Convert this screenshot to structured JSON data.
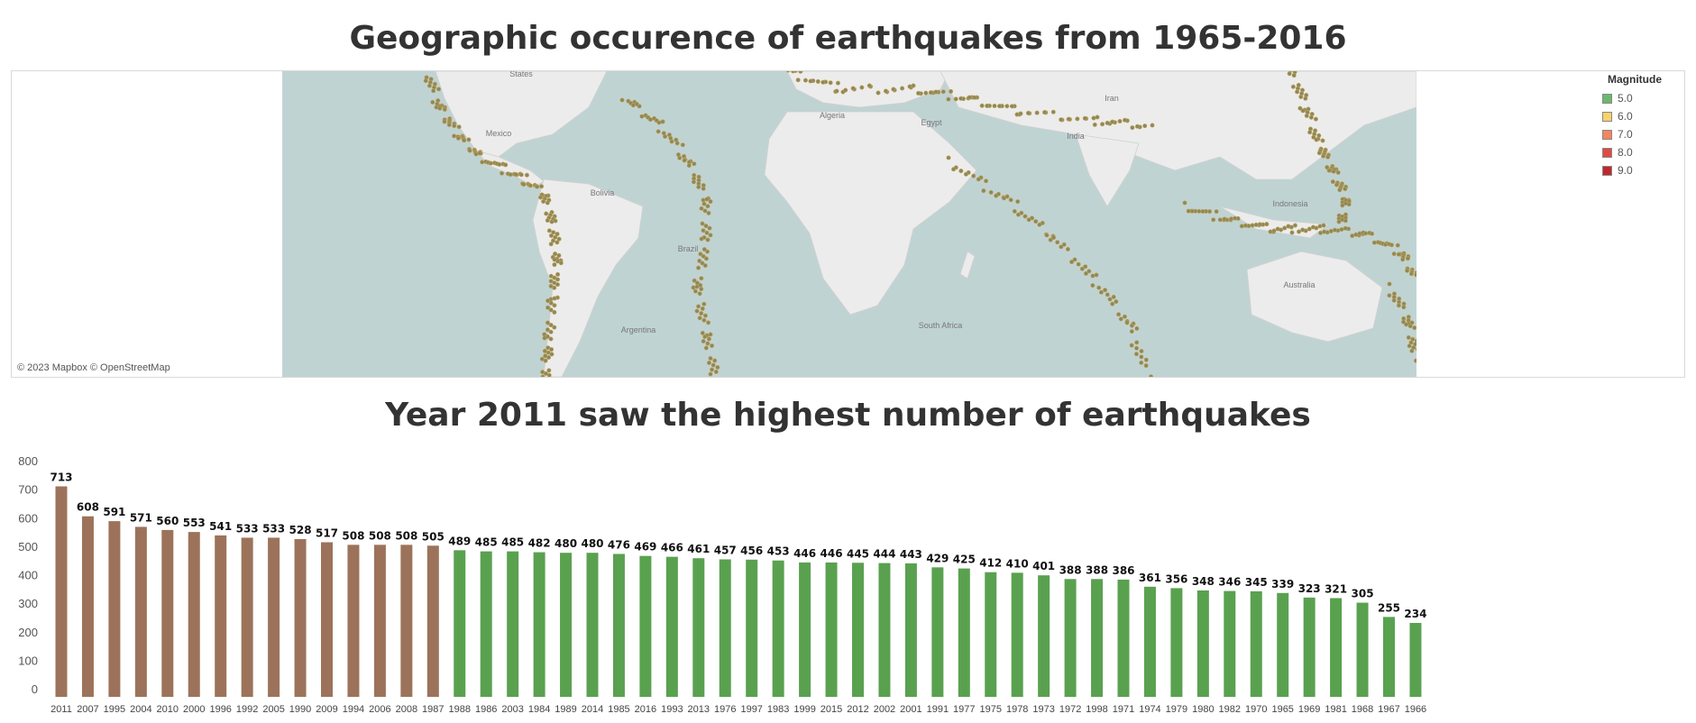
{
  "map": {
    "title": "Geographic occurence of earthquakes from 1965-2016",
    "credit": "© 2023 Mapbox © OpenStreetMap",
    "legend": {
      "title": "Magnitude",
      "items": [
        {
          "label": "5.0",
          "color": "#6cb96c"
        },
        {
          "label": "6.0",
          "color": "#f7d26b"
        },
        {
          "label": "7.0",
          "color": "#f5845f"
        },
        {
          "label": "8.0",
          "color": "#e04b3f"
        },
        {
          "label": "9.0",
          "color": "#c0282d"
        }
      ]
    },
    "place_labels": [
      "States",
      "Mexico",
      "Algeria",
      "Egypt",
      "Iran",
      "India",
      "Brazil",
      "Indonesia",
      "Australia",
      "South Africa",
      "Argentina",
      "Bolivia"
    ],
    "colors": {
      "ocean": "#c0d3d3",
      "land": "#ececec",
      "dot": "#8a8a5a"
    }
  },
  "chart_data": {
    "type": "bar",
    "title": "Year 2011 saw the highest number of earthquakes",
    "xlabel": "",
    "ylabel": "",
    "ylim": [
      0,
      800
    ],
    "yticks": [
      0,
      100,
      200,
      300,
      400,
      500,
      600,
      700,
      800
    ],
    "grid": false,
    "categories": [
      "2011",
      "2007",
      "1995",
      "2004",
      "2010",
      "2000",
      "1996",
      "1992",
      "2005",
      "1990",
      "2009",
      "1994",
      "2006",
      "2008",
      "1987",
      "1988",
      "1986",
      "2003",
      "1984",
      "1989",
      "2014",
      "1985",
      "2016",
      "1993",
      "2013",
      "1976",
      "1997",
      "1983",
      "1999",
      "2015",
      "2012",
      "2002",
      "2001",
      "1991",
      "1977",
      "1975",
      "1978",
      "1973",
      "1972",
      "1998",
      "1971",
      "1974",
      "1979",
      "1980",
      "1982",
      "1970",
      "1965",
      "1969",
      "1981",
      "1968",
      "1967",
      "1966"
    ],
    "values": [
      713,
      608,
      591,
      571,
      560,
      553,
      541,
      533,
      533,
      528,
      517,
      508,
      508,
      508,
      505,
      489,
      485,
      485,
      482,
      480,
      480,
      476,
      469,
      466,
      461,
      457,
      456,
      453,
      446,
      446,
      445,
      444,
      443,
      429,
      425,
      412,
      410,
      401,
      388,
      388,
      386,
      361,
      356,
      348,
      346,
      345,
      339,
      323,
      321,
      305,
      255,
      234
    ],
    "threshold": 500,
    "colors": {
      "above": "#9c735a",
      "below": "#59a14f"
    }
  }
}
